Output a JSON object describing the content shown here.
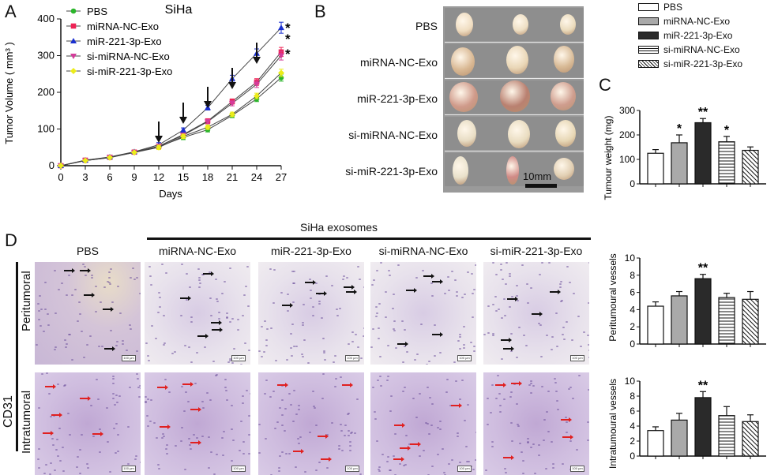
{
  "panels": {
    "A": "A",
    "B": "B",
    "C": "C",
    "D": "D"
  },
  "colors": {
    "PBS": "#2bb52b",
    "miRNA-NC-Exo": "#ee2255",
    "miR-221-3p-Exo": "#1a2fcf",
    "si-miRNA-NC-Exo": "#d43c9a",
    "si-miR-221-3p-Exo": "#ecec1a",
    "bar_pbs": "#ffffff",
    "bar_mirna_nc": "#a9a9a9",
    "bar_mir221": "#2a2a2a"
  },
  "chart_data": [
    {
      "id": "tumor-volume",
      "type": "line",
      "title": "SiHa",
      "xlabel": "Days",
      "ylabel": "Tumor Volume ( mm³ )",
      "x": [
        0,
        3,
        6,
        9,
        12,
        15,
        18,
        21,
        24,
        27
      ],
      "xlim": [
        0,
        27
      ],
      "ylim": [
        0,
        400
      ],
      "yticks": [
        0,
        100,
        200,
        300,
        400
      ],
      "legend": "top-left",
      "series": [
        {
          "name": "PBS",
          "marker": "circle",
          "values": [
            0,
            14,
            22,
            37,
            52,
            77,
            98,
            137,
            182,
            240
          ]
        },
        {
          "name": "miRNA-NC-Exo",
          "marker": "square",
          "values": [
            0,
            15,
            23,
            37,
            53,
            85,
            122,
            175,
            228,
            310
          ]
        },
        {
          "name": "miR-221-3p-Exo",
          "marker": "triangle-up",
          "values": [
            0,
            15,
            24,
            38,
            57,
            97,
            158,
            237,
            306,
            376
          ]
        },
        {
          "name": "si-miRNA-NC-Exo",
          "marker": "triangle-down",
          "values": [
            0,
            14,
            23,
            36,
            53,
            83,
            120,
            170,
            222,
            300
          ]
        },
        {
          "name": "si-miR-221-3p-Exo",
          "marker": "diamond",
          "values": [
            0,
            14,
            22,
            36,
            50,
            80,
            105,
            140,
            190,
            253
          ]
        }
      ],
      "arrows_at_days": [
        12,
        15,
        18,
        21,
        24
      ],
      "significance": [
        {
          "series": "miR-221-3p-Exo",
          "label": "*"
        },
        {
          "series": "miR-221-3p-Exo",
          "label": "*"
        },
        {
          "series": "miRNA-NC-Exo",
          "label": "*"
        }
      ]
    },
    {
      "id": "tumour-weight",
      "type": "bar",
      "ylabel": "Tumour  weight (mg)",
      "categories": [
        "PBS",
        "miRNA-NC-Exo",
        "miR-221-3p-Exo",
        "si-miRNA-NC-Exo",
        "si-miR-221-3p-Exo"
      ],
      "values": [
        125,
        168,
        250,
        172,
        137
      ],
      "errors": [
        15,
        32,
        17,
        22,
        14
      ],
      "ylim": [
        0,
        300
      ],
      "yticks": [
        0,
        100,
        200,
        300
      ],
      "significance": [
        "",
        "*",
        "**",
        "*",
        ""
      ]
    },
    {
      "id": "peritumoural-vessels",
      "type": "bar",
      "ylabel": "Peritumoural vessels",
      "categories": [
        "PBS",
        "miRNA-NC-Exo",
        "miR-221-3p-Exo",
        "si-miRNA-NC-Exo",
        "si-miR-221-3p-Exo"
      ],
      "values": [
        4.4,
        5.6,
        7.6,
        5.4,
        5.2
      ],
      "errors": [
        0.5,
        0.5,
        0.5,
        0.5,
        0.9
      ],
      "ylim": [
        0,
        10
      ],
      "yticks": [
        0,
        2,
        4,
        6,
        8,
        10
      ],
      "significance": [
        "",
        "",
        "**",
        "",
        ""
      ]
    },
    {
      "id": "intratumoural-vessels",
      "type": "bar",
      "ylabel": "Intratumoural vessels",
      "categories": [
        "PBS",
        "miRNA-NC-Exo",
        "miR-221-3p-Exo",
        "si-miRNA-NC-Exo",
        "si-miR-221-3p-Exo"
      ],
      "values": [
        3.4,
        4.8,
        7.8,
        5.4,
        4.6
      ],
      "errors": [
        0.5,
        0.9,
        0.8,
        1.2,
        0.9
      ],
      "ylim": [
        0,
        10
      ],
      "yticks": [
        0,
        2,
        4,
        6,
        8,
        10
      ],
      "significance": [
        "",
        "",
        "**",
        "",
        ""
      ]
    }
  ],
  "legend_c": {
    "items": [
      "PBS",
      "miRNA-NC-Exo",
      "miR-221-3p-Exo",
      "si-miRNA-NC-Exo",
      "si-miR-221-3p-Exo"
    ]
  },
  "panel_b": {
    "rows": [
      "PBS",
      "miRNA-NC-Exo",
      "miR-221-3p-Exo",
      "si-miRNA-NC-Exo",
      "si-miR-221-3p-Exo"
    ],
    "scale_label": "10mm"
  },
  "panel_d": {
    "header": "SiHa exosomes",
    "columns": [
      "PBS",
      "miRNA-NC-Exo",
      "miR-221-3p-Exo",
      "si-miRNA-NC-Exo",
      "si-miR-221-3p-Exo"
    ],
    "rows": [
      "Peritumoral",
      "Intratumoral"
    ],
    "group_label": "CD31",
    "scale_text": "100 μm"
  }
}
